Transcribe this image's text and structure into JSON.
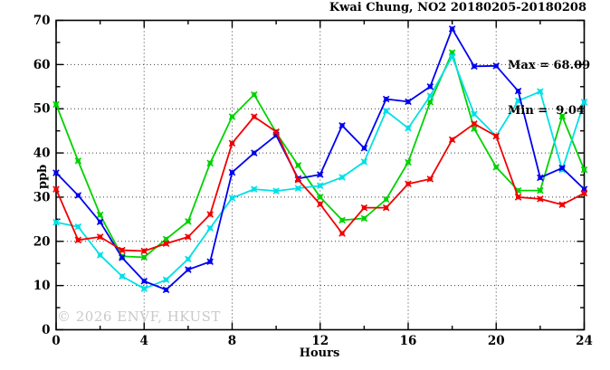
{
  "title": "Kwai Chung, NO2 20180205-20180208",
  "stats": {
    "max_line": "Max = 68.09",
    "min_line": "Min =  9.04"
  },
  "watermark": "© 2026 ENVF, HKUST",
  "chart_data": {
    "type": "line",
    "title": "Kwai Chung, NO2 20180205-20180208",
    "xlabel": "Hours",
    "ylabel": "ppb",
    "xlim": [
      0,
      24
    ],
    "ylim": [
      0,
      70
    ],
    "x_major_ticks": [
      0,
      4,
      8,
      12,
      16,
      20,
      24
    ],
    "x_minor_step": 2,
    "y_major_ticks": [
      0,
      10,
      20,
      30,
      40,
      50,
      60,
      70
    ],
    "y_minor_step": 5,
    "grid": true,
    "legend_position": "none",
    "max": 68.09,
    "min": 9.04,
    "x": [
      0,
      1,
      2,
      3,
      4,
      5,
      6,
      7,
      8,
      9,
      10,
      11,
      12,
      13,
      14,
      15,
      16,
      17,
      18,
      19,
      20,
      21,
      22,
      23,
      24
    ],
    "series": [
      {
        "name": "green-series",
        "color": "#00d200",
        "values": [
          51.0,
          38.2,
          26.0,
          16.6,
          16.4,
          20.5,
          24.5,
          37.7,
          48.2,
          53.2,
          44.6,
          37.2,
          30.0,
          24.8,
          25.2,
          29.5,
          37.9,
          51.5,
          62.7,
          45.5,
          36.8,
          31.5,
          31.5,
          48.3,
          36.2
        ]
      },
      {
        "name": "cyan-series",
        "color": "#00e0e6",
        "values": [
          24.3,
          23.3,
          16.9,
          12.1,
          9.3,
          11.3,
          16.0,
          23.0,
          29.8,
          31.8,
          31.4,
          32.0,
          32.6,
          34.5,
          38.0,
          49.5,
          45.6,
          52.9,
          61.8,
          48.8,
          43.8,
          51.8,
          53.9,
          36.2,
          51.5
        ]
      },
      {
        "name": "blue-series",
        "color": "#0000f0",
        "values": [
          35.5,
          30.4,
          24.4,
          16.3,
          11.0,
          9.04,
          13.6,
          15.4,
          35.6,
          40.0,
          44.0,
          34.2,
          35.1,
          46.2,
          41.1,
          52.2,
          51.6,
          55.0,
          68.09,
          59.6,
          59.7,
          54.0,
          34.4,
          36.6,
          31.8
        ]
      },
      {
        "name": "red-series",
        "color": "#f00000",
        "values": [
          31.8,
          20.3,
          21.0,
          18.0,
          17.8,
          19.5,
          21.0,
          26.1,
          42.2,
          48.2,
          44.8,
          33.9,
          28.4,
          21.8,
          27.6,
          27.6,
          33.0,
          34.1,
          43.0,
          46.6,
          43.8,
          30.0,
          29.6,
          28.3,
          30.9
        ]
      }
    ],
    "colors": {
      "axis": "#000000",
      "grid": "#3c3c3c",
      "watermark": "#c9c9c9"
    }
  }
}
